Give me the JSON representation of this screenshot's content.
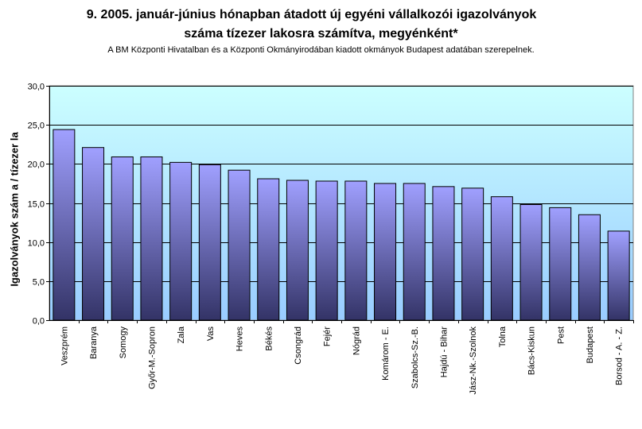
{
  "page": {
    "title_line1": "9.   2005. január-június hónapban átadott új egyéni vállalkozói  igazolványok",
    "title_line2": "száma tízezer lakosra számítva, megyénként*",
    "subtitle": "A BM Központi Hivatalban és a Központi Okmányirodában kiadott okmányok Budapest adatában szerepelnek."
  },
  "chart_data": {
    "type": "bar",
    "title": "9.   2005. január-június hónapban átadott új egyéni vállalkozói  igazolványok száma tízezer lakosra számítva, megyénként*",
    "xlabel": "",
    "ylabel": "Igazolványok szám a / tízezer la",
    "ylim": [
      0,
      30
    ],
    "yticks": [
      "0,0",
      "5,0",
      "10,0",
      "15,0",
      "20,0",
      "25,0",
      "30,0"
    ],
    "grid": true,
    "categories": [
      "Veszprém",
      "Baranya",
      "Somogy",
      "Győr-M.-Sopron",
      "Zala",
      "Vas",
      "Heves",
      "Békés",
      "Csongrád",
      "Fejér",
      "Nógrád",
      "Komárom - E.",
      "Szabolcs-Sz.-B.",
      "Hajdú - Bihar",
      "Jász-Nk.-Szolnok",
      "Tolna",
      "Bács-Kiskun",
      "Pest",
      "Budapest",
      "Borsod - A. - Z."
    ],
    "values": [
      24.4,
      22.1,
      20.9,
      20.9,
      20.2,
      19.9,
      19.2,
      18.1,
      17.9,
      17.8,
      17.8,
      17.5,
      17.5,
      17.1,
      16.9,
      15.8,
      14.8,
      14.4,
      13.5,
      11.4
    ],
    "colors": {
      "bar_top": "#a0a0ff",
      "bar_bottom": "#333366",
      "plot_bg_top": "#ccffff",
      "plot_bg_bottom": "#99ccff",
      "grid": "#000000"
    }
  }
}
